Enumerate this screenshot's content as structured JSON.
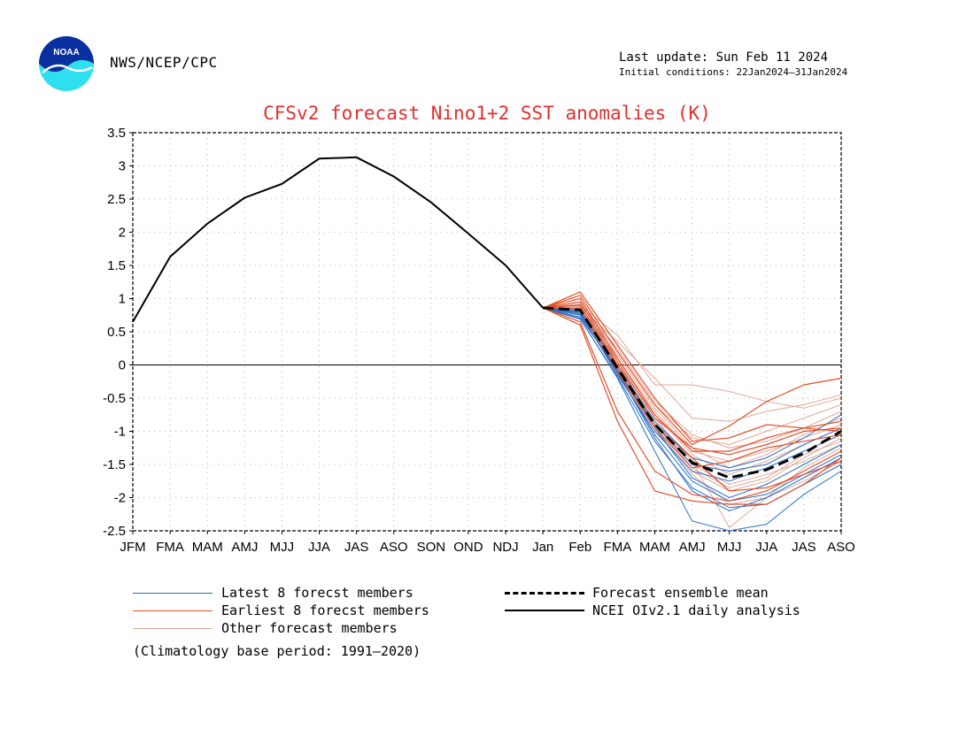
{
  "header": {
    "org": "NWS/NCEP/CPC",
    "last_update": "Last update: Sun Feb 11 2024",
    "initial_conditions": "Initial conditions: 22Jan2024—31Jan2024",
    "logo_text": "NOAA"
  },
  "colors": {
    "title": "#e03030",
    "latest": "#2a6fc9",
    "earliest": "#e2502a",
    "other": "#e0a898",
    "observed": "#000000"
  },
  "legend": {
    "latest": "Latest 8 forecst members",
    "earliest": "Earliest 8 forecst members",
    "other": "Other forecast members",
    "mean": "Forecast ensemble mean",
    "observed": "NCEI OIv2.1 daily analysis"
  },
  "footnote": "(Climatology base period: 1991—2020)",
  "chart_data": {
    "type": "line",
    "title": "CFSv2 forecast Nino1+2 SST anomalies (K)",
    "categories": [
      "JFM",
      "FMA",
      "MAM",
      "AMJ",
      "MJJ",
      "JJA",
      "JAS",
      "ASO",
      "SON",
      "OND",
      "NDJ",
      "Jan",
      "Feb",
      "FMA",
      "MAM",
      "AMJ",
      "MJJ",
      "JJA",
      "JAS",
      "ASO"
    ],
    "ylim": [
      -2.5,
      3.5
    ],
    "yticks": [
      "3.5",
      "3",
      "2.5",
      "2",
      "1.5",
      "1",
      "0.5",
      "0",
      "-0.5",
      "-1",
      "-1.5",
      "-2",
      "-2.5"
    ],
    "grid": true,
    "legend_position": "bottom",
    "observed": [
      0.65,
      1.63,
      2.13,
      2.52,
      2.73,
      3.11,
      3.13,
      2.84,
      2.45,
      1.98,
      1.5,
      0.86
    ],
    "forecast_mean": [
      0.86,
      0.83,
      -0.05,
      -0.9,
      -1.47,
      -1.7,
      -1.58,
      -1.33,
      -1.0
    ],
    "forecast_members": {
      "latest": [
        [
          0.86,
          0.7,
          -0.2,
          -1.3,
          -2.35,
          -2.55,
          -2.4,
          -1.95,
          -1.6
        ],
        [
          0.86,
          0.75,
          -0.1,
          -1.1,
          -1.9,
          -2.2,
          -2.0,
          -1.7,
          -1.4
        ],
        [
          0.86,
          0.8,
          -0.05,
          -0.95,
          -1.7,
          -2.0,
          -1.8,
          -1.5,
          -1.2
        ],
        [
          0.86,
          0.78,
          -0.15,
          -1.0,
          -1.6,
          -1.75,
          -1.55,
          -1.3,
          -1.05
        ],
        [
          0.86,
          0.72,
          -0.08,
          -0.9,
          -1.5,
          -1.6,
          -1.5,
          -1.2,
          -0.95
        ],
        [
          0.86,
          0.82,
          0.0,
          -0.85,
          -1.4,
          -1.55,
          -1.4,
          -1.1,
          -0.75
        ],
        [
          0.86,
          0.76,
          -0.12,
          -1.05,
          -1.75,
          -2.05,
          -1.95,
          -1.65,
          -1.35
        ],
        [
          0.86,
          0.69,
          -0.18,
          -1.15,
          -1.85,
          -2.15,
          -2.1,
          -1.8,
          -1.5
        ]
      ],
      "earliest": [
        [
          0.86,
          1.05,
          0.2,
          -0.6,
          -1.2,
          -0.92,
          -0.55,
          -0.3,
          -0.2
        ],
        [
          0.86,
          1.0,
          0.1,
          -0.75,
          -1.3,
          -1.3,
          -1.1,
          -0.95,
          -0.85
        ],
        [
          0.86,
          0.95,
          0.05,
          -0.8,
          -1.25,
          -1.35,
          -1.2,
          -1.0,
          -0.95
        ],
        [
          0.86,
          0.6,
          -0.85,
          -1.9,
          -2.05,
          -2.1,
          -2.1,
          -1.8,
          -1.4
        ],
        [
          0.86,
          0.65,
          -0.7,
          -1.6,
          -1.95,
          -2.05,
          -1.9,
          -1.6,
          -1.3
        ],
        [
          0.86,
          0.9,
          0.0,
          -0.9,
          -1.4,
          -1.9,
          -1.85,
          -1.65,
          -1.45
        ],
        [
          0.86,
          1.1,
          0.3,
          -0.5,
          -1.15,
          -1.1,
          -0.9,
          -0.95,
          -1.0
        ],
        [
          0.86,
          0.85,
          -0.1,
          -0.95,
          -1.55,
          -1.45,
          -1.25,
          -1.15,
          -1.05
        ]
      ],
      "other": [
        [
          0.86,
          0.9,
          0.45,
          -0.3,
          -0.3,
          -0.4,
          -0.55,
          -0.65,
          -0.5
        ],
        [
          0.86,
          0.88,
          0.35,
          -0.2,
          -0.8,
          -0.85,
          -0.7,
          -0.6,
          -0.45
        ],
        [
          0.86,
          0.92,
          0.2,
          -0.6,
          -1.1,
          -1.2,
          -1.0,
          -0.8,
          -0.6
        ],
        [
          0.86,
          0.85,
          0.1,
          -0.7,
          -1.3,
          -1.45,
          -1.3,
          -1.1,
          -0.9
        ],
        [
          0.86,
          0.8,
          0.0,
          -0.85,
          -1.5,
          -1.8,
          -1.65,
          -1.45,
          -1.2
        ],
        [
          0.86,
          0.78,
          -0.05,
          -0.95,
          -1.65,
          -2.1,
          -2.0,
          -1.75,
          -1.45
        ],
        [
          0.86,
          0.83,
          0.05,
          -0.8,
          -1.45,
          -2.45,
          -2.0,
          -1.55,
          -1.25
        ],
        [
          0.86,
          0.87,
          0.15,
          -0.65,
          -1.25,
          -1.55,
          -1.35,
          -1.05,
          -0.8
        ],
        [
          0.86,
          0.79,
          -0.1,
          -1.0,
          -1.6,
          -1.9,
          -1.75,
          -1.4,
          -1.1
        ],
        [
          0.86,
          0.84,
          0.0,
          -0.75,
          -1.35,
          -1.65,
          -1.45,
          -1.2,
          -0.95
        ],
        [
          0.86,
          0.91,
          0.25,
          -0.55,
          -1.05,
          -1.25,
          -1.15,
          -0.95,
          -0.7
        ],
        [
          0.86,
          0.81,
          -0.02,
          -0.9,
          -1.55,
          -1.85,
          -1.7,
          -1.35,
          -1.15
        ]
      ]
    }
  }
}
